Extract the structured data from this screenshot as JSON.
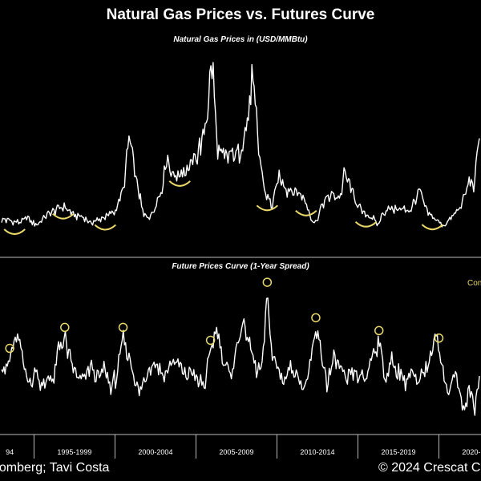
{
  "chart_data": [
    {
      "type": "line",
      "title": "Natural Gas Prices vs. Futures Curve",
      "subtitle": "Natural Gas Prices in (USD/MMBtu)",
      "series": [
        {
          "x": [
            1993.0,
            1993.7,
            1994.2,
            1994.6,
            1995.2,
            1995.8,
            1996.3,
            1996.8,
            1997.4,
            1997.9,
            1998.5,
            1999.0,
            1999.6,
            2000.0,
            2000.5,
            2000.9,
            2001.3,
            2001.8,
            2002.3,
            2002.9,
            2003.2,
            2003.6,
            2004.1,
            2004.6,
            2005.0,
            2005.5,
            2005.8,
            2006.0,
            2006.3,
            2006.8,
            2007.2,
            2007.7,
            2008.2,
            2008.5,
            2008.9,
            2009.3,
            2009.7,
            2010.1,
            2010.6,
            2011.2,
            2011.7,
            2012.1,
            2012.4,
            2012.9,
            2013.4,
            2013.9,
            2014.2,
            2014.8,
            2015.3,
            2015.8,
            2016.2,
            2016.7,
            2017.2,
            2017.7,
            2018.2,
            2018.8,
            2019.3,
            2019.8,
            2020.3,
            2020.7,
            2021.1,
            2021.5,
            2021.9,
            2022.2,
            2022.5
          ],
          "values": [
            2.2,
            2.1,
            2.0,
            2.3,
            1.8,
            2.5,
            2.8,
            3.2,
            2.6,
            2.4,
            2.0,
            2.2,
            2.5,
            2.8,
            4.3,
            8.2,
            5.0,
            2.4,
            2.6,
            4.6,
            6.8,
            5.4,
            5.6,
            6.0,
            6.6,
            8.2,
            11.0,
            13.8,
            7.2,
            6.5,
            7.0,
            6.8,
            9.4,
            12.6,
            6.8,
            4.0,
            3.2,
            5.3,
            4.4,
            4.2,
            3.8,
            2.3,
            2.0,
            3.5,
            4.0,
            3.9,
            5.6,
            3.7,
            2.7,
            2.5,
            1.8,
            2.9,
            3.0,
            2.9,
            2.9,
            4.2,
            2.6,
            2.3,
            1.7,
            2.2,
            2.7,
            3.5,
            5.2,
            4.6,
            8.5
          ]
        }
      ],
      "ylim": [
        0,
        14
      ]
    },
    {
      "type": "line",
      "subtitle": "Future Prices Curve (1-Year Spread)",
      "annotation": "Contango",
      "series": [
        {
          "x": [
            1993.0,
            1993.3,
            1993.7,
            1994.0,
            1994.4,
            1994.8,
            1995.1,
            1995.5,
            1995.9,
            1996.2,
            1996.5,
            1996.9,
            1997.3,
            1997.7,
            1998.1,
            1998.5,
            1998.9,
            1999.3,
            1999.7,
            2000.1,
            2000.5,
            2000.9,
            2001.2,
            2001.5,
            2001.9,
            2002.3,
            2002.7,
            2003.1,
            2003.5,
            2003.9,
            2004.3,
            2004.7,
            2005.1,
            2005.5,
            2005.9,
            2006.3,
            2006.7,
            2007.1,
            2007.5,
            2007.9,
            2008.3,
            2008.7,
            2009.1,
            2009.4,
            2009.7,
            2010.1,
            2010.5,
            2010.9,
            2011.3,
            2011.7,
            2012.1,
            2012.4,
            2012.7,
            2013.1,
            2013.5,
            2013.9,
            2014.3,
            2014.7,
            2015.1,
            2015.5,
            2015.9,
            2016.3,
            2016.7,
            2017.1,
            2017.5,
            2017.9,
            2018.3,
            2018.7,
            2019.1,
            2019.5,
            2019.8,
            2020.1,
            2020.4,
            2020.7,
            2021.0,
            2021.3,
            2021.6,
            2021.9,
            2022.2,
            2022.5
          ],
          "values": [
            0.5,
            0.2,
            0.9,
            1.3,
            0.3,
            -0.2,
            0.3,
            -0.4,
            0.0,
            -0.2,
            0.9,
            1.2,
            0.4,
            0.0,
            -0.1,
            0.4,
            -0.1,
            0.3,
            -0.3,
            0.0,
            1.2,
            0.6,
            0.1,
            -0.6,
            0.0,
            0.5,
            0.3,
            0.0,
            0.5,
            0.4,
            0.0,
            0.2,
            -0.1,
            -0.3,
            0.8,
            1.5,
            0.6,
            0.0,
            0.9,
            1.7,
            1.0,
            0.2,
            0.4,
            2.6,
            0.7,
            0.2,
            -0.1,
            0.4,
            0.0,
            -0.4,
            0.4,
            1.5,
            0.9,
            -0.2,
            0.5,
            0.3,
            -0.2,
            0.2,
            0.0,
            0.0,
            0.7,
            1.1,
            -0.1,
            0.5,
            0.2,
            -0.1,
            0.1,
            -0.3,
            0.2,
            0.6,
            1.6,
            0.5,
            -0.2,
            -0.4,
            0.3,
            -0.6,
            -1.1,
            -0.4,
            -0.9,
            0.0
          ]
        }
      ],
      "ylim": [
        -1.6,
        3.0
      ]
    }
  ],
  "axis": {
    "tick_labels": [
      "94",
      "1995-1999",
      "2000-2004",
      "2005-2009",
      "2010-2014",
      "2015-2019",
      "2020-"
    ],
    "tick_x": [
      1993.5,
      1997.5,
      2002.5,
      2007.5,
      2012.5,
      2017.5,
      2022.0
    ],
    "separators": [
      1995.0,
      2000.0,
      2005.0,
      2010.0,
      2015.0,
      2020.0
    ],
    "xlim": [
      1992.9,
      2022.6
    ]
  },
  "markers": {
    "top_lows_x": [
      1993.8,
      1996.8,
      1999.4,
      2004.0,
      2009.4,
      2011.8,
      2015.5,
      2019.6
    ],
    "bottom_peaks_x": [
      1993.5,
      1996.9,
      2000.5,
      2005.9,
      2009.4,
      2012.4,
      2016.3,
      2020.0
    ]
  },
  "colors": {
    "line": "#ffffff",
    "marker": "#e8d86a",
    "background": "#000000"
  },
  "footer": {
    "source": "oomberg; Tavi Costa",
    "copyright": "© 2024 Crescat C"
  }
}
